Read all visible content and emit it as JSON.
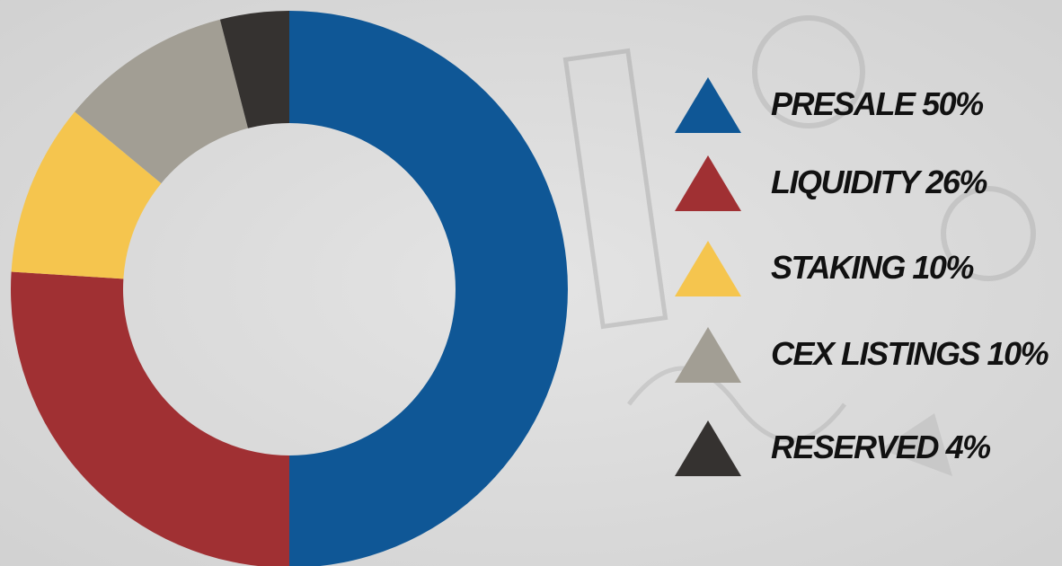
{
  "chart_data": {
    "type": "donut",
    "categories": [
      "PRESALE",
      "LIQUIDITY",
      "STAKING",
      "CEX LISTINGS",
      "RESERVED"
    ],
    "values": [
      50,
      26,
      10,
      10,
      4
    ],
    "value_labels": [
      "50%",
      "26%",
      "10%",
      "10%",
      "4%"
    ],
    "colors": [
      "#0f5796",
      "#a03033",
      "#f5c54e",
      "#a29e94",
      "#353230"
    ]
  }
}
